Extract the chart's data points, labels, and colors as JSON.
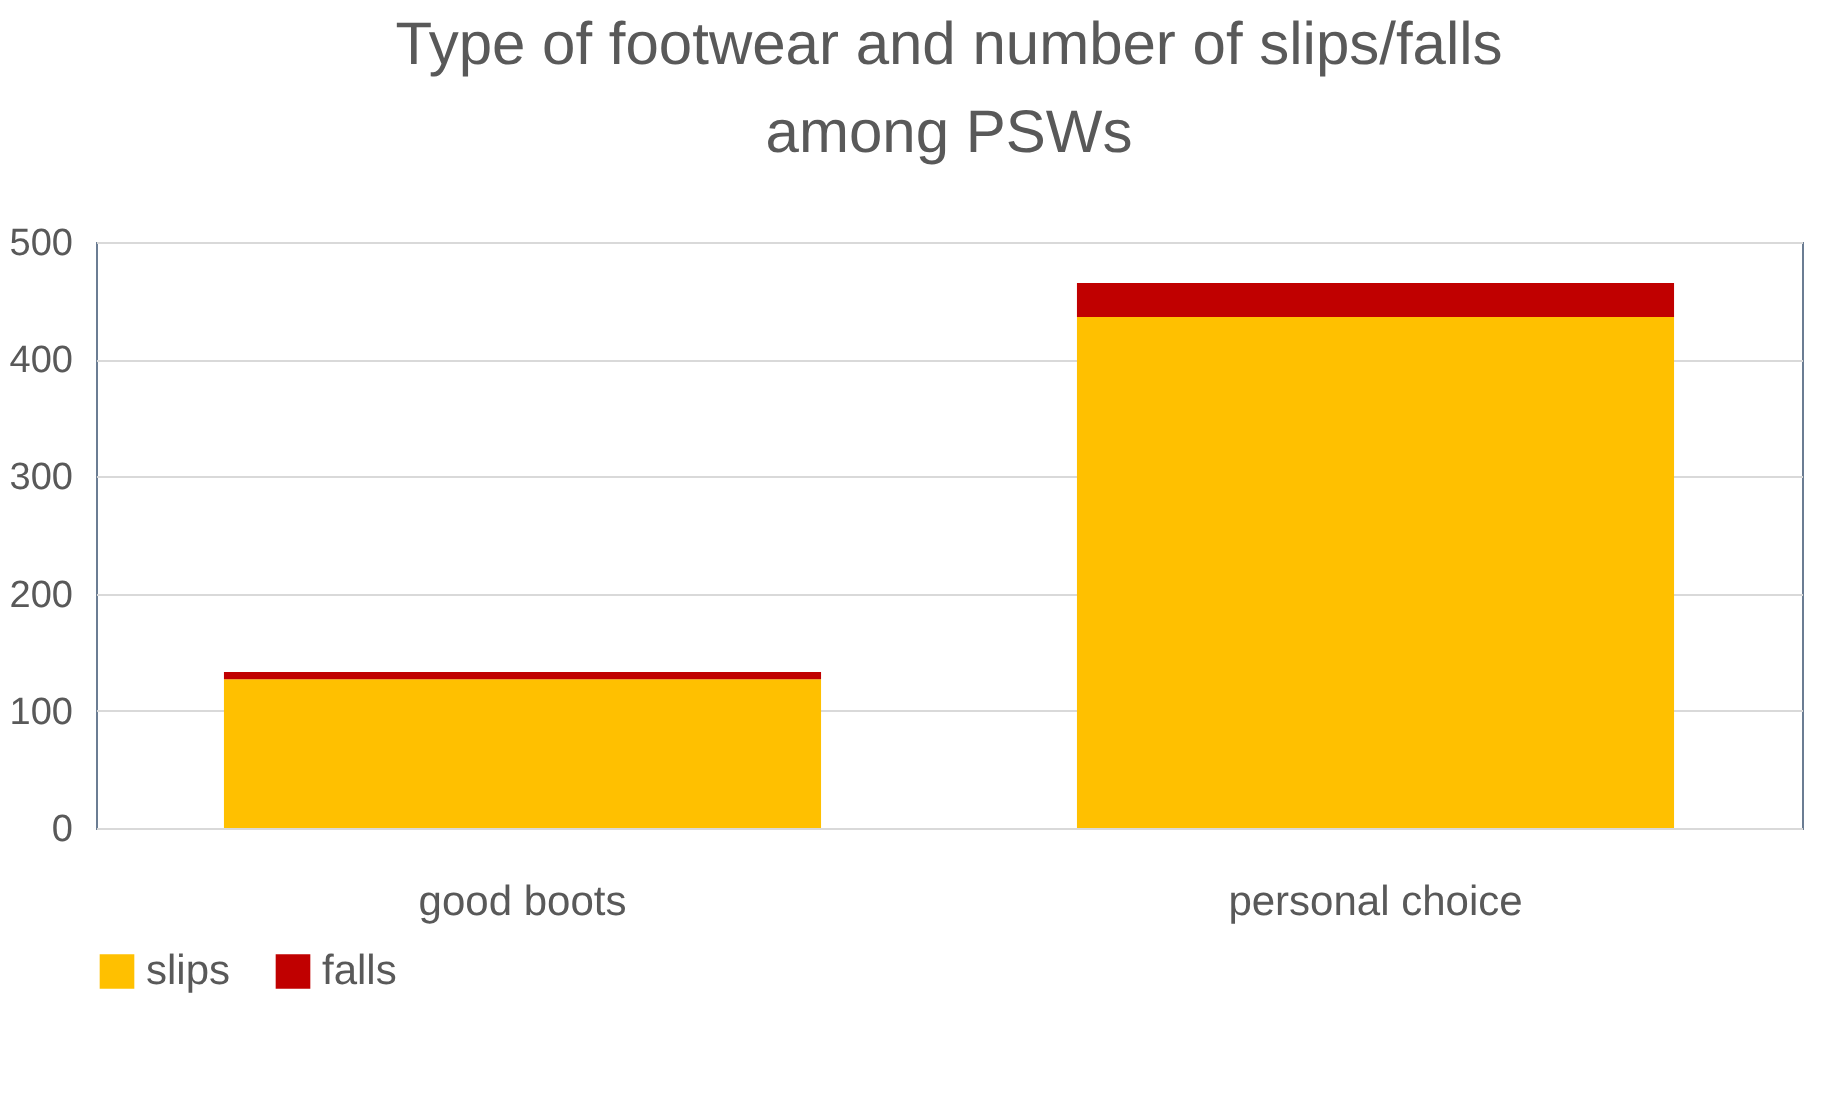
{
  "chart_data": {
    "type": "bar",
    "title": [
      "Type of footwear and number of slips/falls",
      "among PSWs"
    ],
    "categories": [
      "good boots",
      "personal choice"
    ],
    "stacked": true,
    "series": [
      {
        "name": "slips",
        "color": "#ffc000",
        "values": [
          127,
          436
        ]
      },
      {
        "name": "falls",
        "color": "#c00000",
        "values": [
          6,
          29
        ]
      }
    ],
    "ylim": [
      0,
      500
    ],
    "yticks": [
      0,
      100,
      200,
      300,
      400,
      500
    ],
    "grid": "y",
    "legend": "bottom"
  }
}
